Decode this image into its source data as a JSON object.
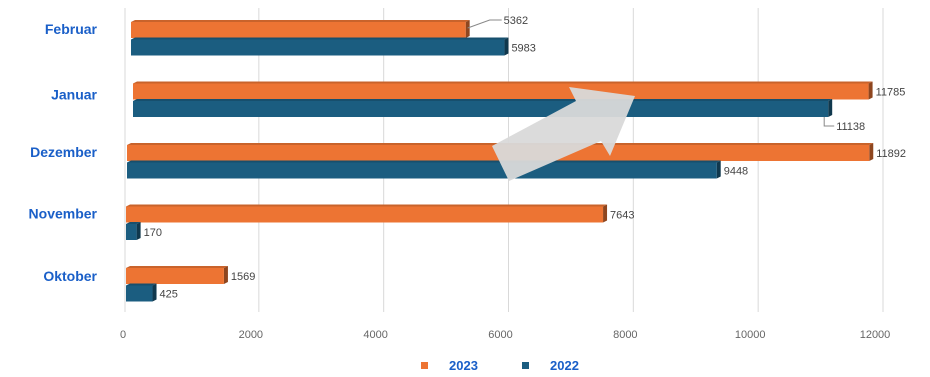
{
  "chart_data": {
    "type": "bar",
    "orientation": "horizontal",
    "three_d": true,
    "categories": [
      "Februar",
      "Januar",
      "Dezember",
      "November",
      "Oktober"
    ],
    "series": [
      {
        "name": "2023",
        "color": "#ed7433",
        "values": [
          5362,
          11785,
          11892,
          7643,
          1569
        ]
      },
      {
        "name": "2022",
        "color": "#1b5d80",
        "values": [
          5983,
          11138,
          9448,
          170,
          425
        ]
      }
    ],
    "x_ticks": [
      "0",
      "2000",
      "4000",
      "6000",
      "8000",
      "10000",
      "12000"
    ],
    "xlim": [
      0,
      12000
    ],
    "grid": true,
    "legend_position": "bottom",
    "annotation": "grey upward arrow",
    "title": "",
    "xlabel": "",
    "ylabel": ""
  }
}
